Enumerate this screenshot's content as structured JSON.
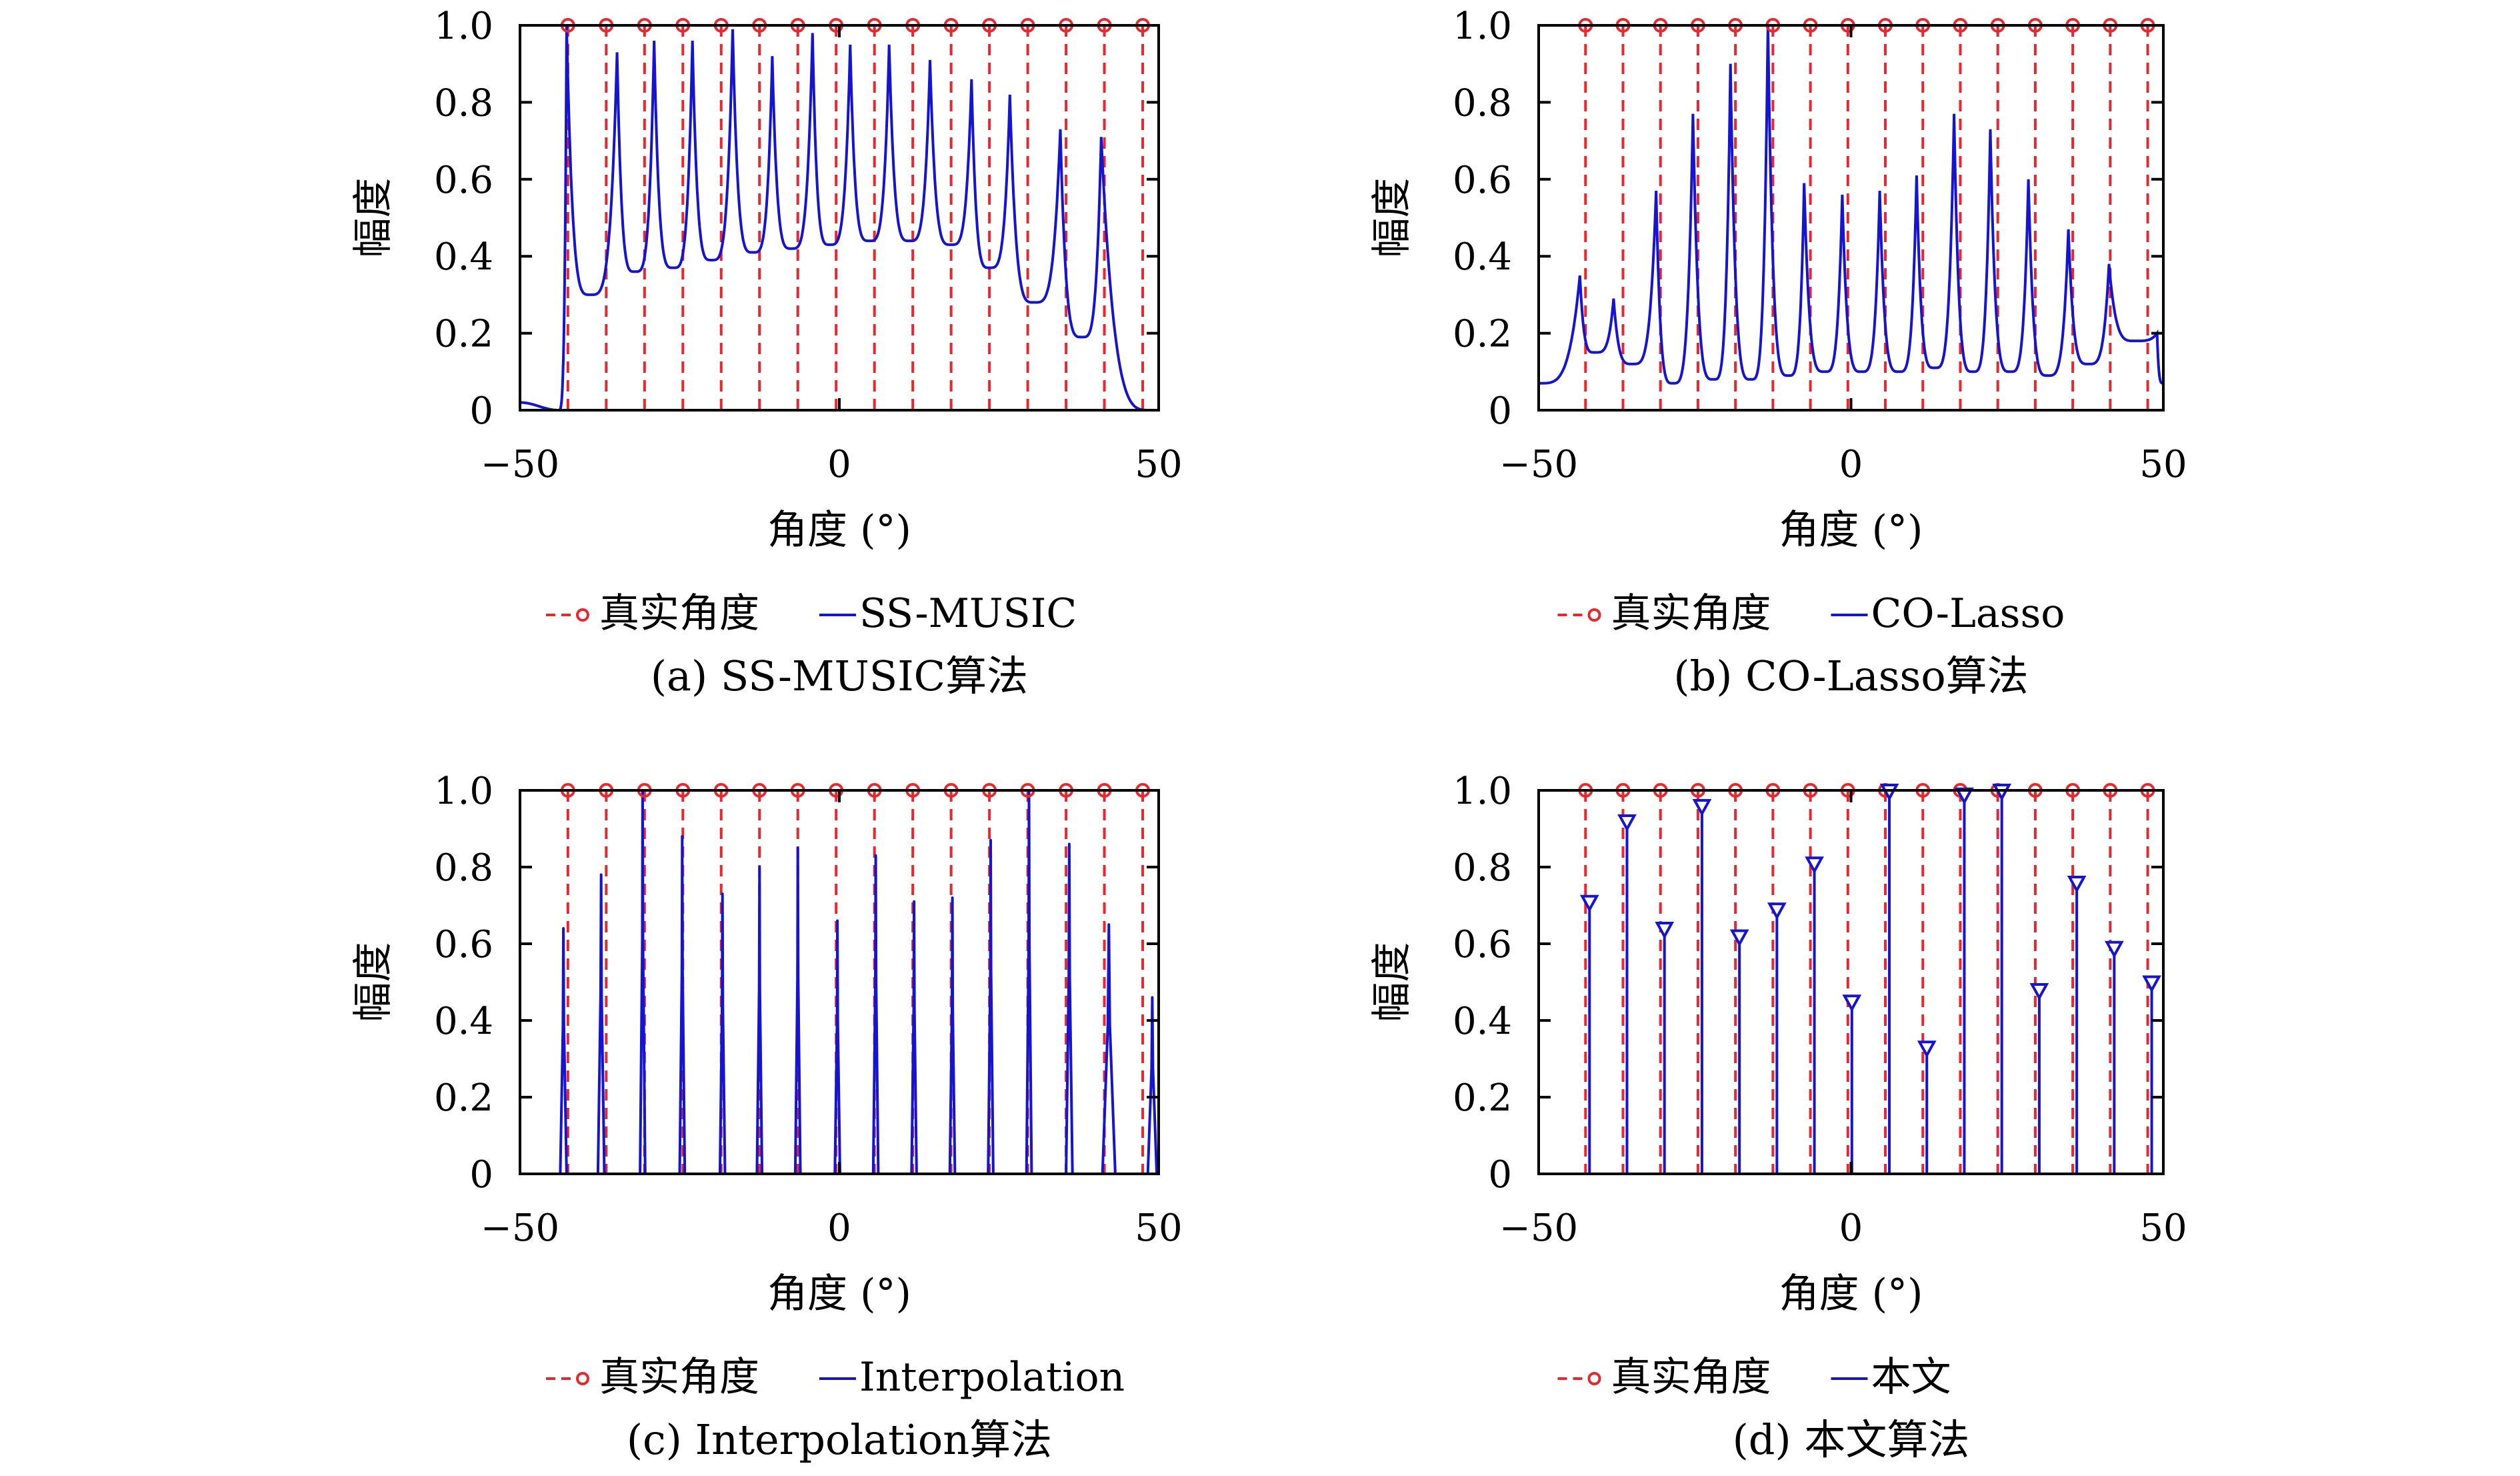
{
  "colors": {
    "true_angle": "#e8282e",
    "estimate": "#1414d2",
    "axis": "#000000"
  },
  "chart_data": [
    {
      "type": "line",
      "caption": "(a) SS-MUSIC算法",
      "xlabel": "角度 (°)",
      "ylabel": "幅度",
      "xlim": [
        -50,
        50
      ],
      "ylim": [
        0,
        1
      ],
      "xticks": [
        "−50",
        "0",
        "50"
      ],
      "yticks": [
        "0",
        "0.2",
        "0.4",
        "0.6",
        "0.8",
        "1.0"
      ],
      "legend": [
        "真实角度",
        "SS-MUSIC"
      ],
      "true_angles": [
        -42.5,
        -36.5,
        -30.5,
        -24.5,
        -18.5,
        -12.5,
        -6.5,
        -0.5,
        5.5,
        11.5,
        17.5,
        23.5,
        29.5,
        35.5,
        41.5,
        47.5
      ],
      "series": [
        {
          "style": "spectrum",
          "floor": 0.0,
          "edge": [
            -44,
            49
          ],
          "peaks": [
            [
              -42.7,
              1.0
            ],
            [
              -34.8,
              0.93
            ],
            [
              -29.0,
              0.96
            ],
            [
              -23.0,
              0.96
            ],
            [
              -16.7,
              0.99
            ],
            [
              -10.5,
              0.92
            ],
            [
              -4.2,
              0.98
            ],
            [
              1.7,
              0.95
            ],
            [
              7.8,
              0.95
            ],
            [
              14.2,
              0.91
            ],
            [
              20.7,
              0.86
            ],
            [
              26.7,
              0.82
            ],
            [
              34.6,
              0.73
            ],
            [
              41.0,
              0.71
            ]
          ],
          "valleys": [
            [
              -39.0,
              0.3
            ],
            [
              -32.0,
              0.36
            ],
            [
              -26.0,
              0.37
            ],
            [
              -20.0,
              0.39
            ],
            [
              -13.5,
              0.41
            ],
            [
              -7.5,
              0.42
            ],
            [
              -1.5,
              0.43
            ],
            [
              4.7,
              0.44
            ],
            [
              11.0,
              0.44
            ],
            [
              17.5,
              0.43
            ],
            [
              23.5,
              0.37
            ],
            [
              30.5,
              0.28
            ],
            [
              38.0,
              0.19
            ]
          ]
        }
      ]
    },
    {
      "type": "line",
      "caption": "(b) CO-Lasso算法",
      "xlabel": "角度 (°)",
      "ylabel": "幅度",
      "xlim": [
        -50,
        50
      ],
      "ylim": [
        0,
        1
      ],
      "xticks": [
        "−50",
        "0",
        "50"
      ],
      "yticks": [
        "0",
        "0.2",
        "0.4",
        "0.6",
        "0.8",
        "1.0"
      ],
      "legend": [
        "真实角度",
        "CO-Lasso"
      ],
      "true_angles": [
        -42.5,
        -36.5,
        -30.5,
        -24.5,
        -18.5,
        -12.5,
        -6.5,
        -0.5,
        5.5,
        11.5,
        17.5,
        23.5,
        29.5,
        35.5,
        41.5,
        47.5
      ],
      "series": [
        {
          "style": "spectrum",
          "floor": 0.06,
          "start": 0.07,
          "end": 0.07,
          "peaks": [
            [
              -43.4,
              0.35
            ],
            [
              -38.0,
              0.29
            ],
            [
              -31.2,
              0.57
            ],
            [
              -25.3,
              0.77
            ],
            [
              -19.3,
              0.9
            ],
            [
              -13.3,
              1.0
            ],
            [
              -7.5,
              0.59
            ],
            [
              -1.4,
              0.56
            ],
            [
              4.6,
              0.57
            ],
            [
              10.5,
              0.61
            ],
            [
              16.5,
              0.77
            ],
            [
              22.3,
              0.73
            ],
            [
              28.4,
              0.6
            ],
            [
              34.8,
              0.47
            ],
            [
              41.3,
              0.38
            ],
            [
              49.0,
              0.2
            ]
          ],
          "valleys": [
            [
              -41.0,
              0.15
            ],
            [
              -35.0,
              0.12
            ],
            [
              -28.5,
              0.07
            ],
            [
              -22.0,
              0.08
            ],
            [
              -16.0,
              0.08
            ],
            [
              -10.0,
              0.09
            ],
            [
              -4.2,
              0.1
            ],
            [
              1.7,
              0.1
            ],
            [
              7.7,
              0.1
            ],
            [
              13.4,
              0.11
            ],
            [
              19.5,
              0.1
            ],
            [
              25.5,
              0.1
            ],
            [
              31.5,
              0.09
            ],
            [
              38.0,
              0.12
            ],
            [
              45.5,
              0.18
            ]
          ]
        }
      ]
    },
    {
      "type": "line",
      "caption": "(c) Interpolation算法",
      "xlabel": "角度 (°)",
      "ylabel": "幅度",
      "xlim": [
        -50,
        50
      ],
      "ylim": [
        0,
        1
      ],
      "xticks": [
        "−50",
        "0",
        "50"
      ],
      "yticks": [
        "0",
        "0.2",
        "0.4",
        "0.6",
        "0.8",
        "1.0"
      ],
      "legend": [
        "真实角度",
        "Interpolation"
      ],
      "true_angles": [
        -42.5,
        -36.5,
        -30.5,
        -24.5,
        -18.5,
        -12.5,
        -6.5,
        -0.5,
        5.5,
        11.5,
        17.5,
        23.5,
        29.5,
        35.5,
        41.5,
        47.5
      ],
      "series": [
        {
          "style": "spikes",
          "peaks": [
            [
              -43.2,
              0.64,
              0.5
            ],
            [
              -37.3,
              0.78,
              0.5
            ],
            [
              -30.8,
              1.0,
              0.4
            ],
            [
              -24.6,
              0.88,
              0.4
            ],
            [
              -18.3,
              0.73,
              0.4
            ],
            [
              -12.5,
              0.8,
              0.4
            ],
            [
              -6.5,
              0.85,
              0.4
            ],
            [
              -0.3,
              0.66,
              0.4
            ],
            [
              5.7,
              0.83,
              0.4
            ],
            [
              11.7,
              0.71,
              0.4
            ],
            [
              17.7,
              0.72,
              0.4
            ],
            [
              23.7,
              0.87,
              0.4
            ],
            [
              29.7,
              1.0,
              0.4
            ],
            [
              36.0,
              0.86,
              0.5
            ],
            [
              42.2,
              0.65,
              1.0
            ],
            [
              49.0,
              0.46,
              0.7
            ]
          ]
        }
      ]
    },
    {
      "type": "line",
      "caption": "(d) 本文算法",
      "xlabel": "角度 (°)",
      "ylabel": "幅度",
      "xlim": [
        -50,
        50
      ],
      "ylim": [
        0,
        1
      ],
      "xticks": [
        "−50",
        "0",
        "50"
      ],
      "yticks": [
        "0",
        "0.2",
        "0.4",
        "0.6",
        "0.8",
        "1.0"
      ],
      "legend": [
        "真实角度",
        "本文"
      ],
      "true_angles": [
        -42.5,
        -36.5,
        -30.5,
        -24.5,
        -18.5,
        -12.5,
        -6.5,
        -0.5,
        5.5,
        11.5,
        17.5,
        23.5,
        29.5,
        35.5,
        41.5,
        47.5
      ],
      "series": [
        {
          "style": "stems",
          "points": [
            [
              -42.5,
              0.71
            ],
            [
              -36.5,
              0.92
            ],
            [
              -30.5,
              0.64
            ],
            [
              -24.5,
              0.96
            ],
            [
              -18.5,
              0.62
            ],
            [
              -12.5,
              0.69
            ],
            [
              -6.5,
              0.81
            ],
            [
              -0.5,
              0.45
            ],
            [
              5.5,
              1.0
            ],
            [
              11.5,
              0.33
            ],
            [
              17.5,
              0.99
            ],
            [
              23.5,
              1.0
            ],
            [
              29.5,
              0.48
            ],
            [
              35.5,
              0.76
            ],
            [
              41.5,
              0.59
            ],
            [
              47.5,
              0.5
            ]
          ]
        }
      ]
    }
  ]
}
